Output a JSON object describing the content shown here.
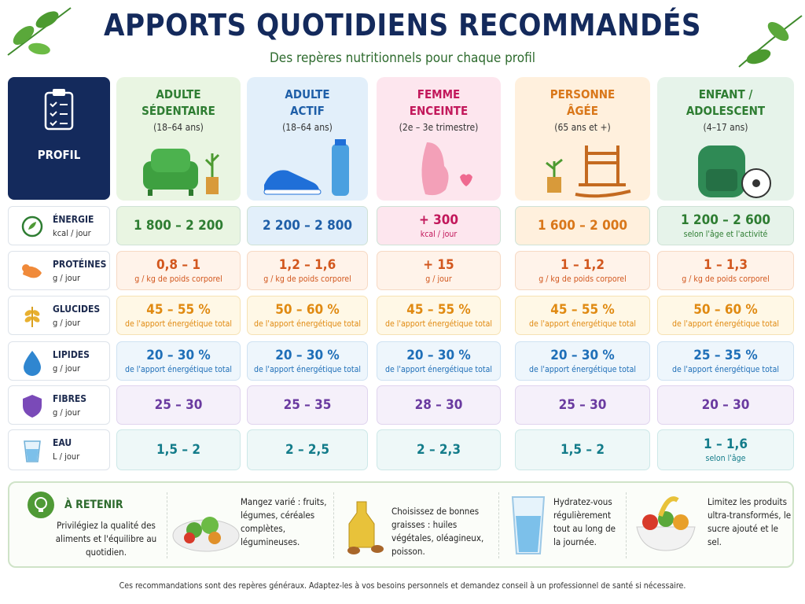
{
  "header": {
    "title": "APPORTS QUOTIDIENS RECOMMANDÉS",
    "subtitle": "Des repères nutritionnels pour chaque profil"
  },
  "table": {
    "corner_label": "PROFIL",
    "profiles": [
      {
        "name": "ADULTE\nSÉDENTAIRE",
        "detail": "(18–64 ans)"
      },
      {
        "name": "ADULTE\nACTIF",
        "detail": "(18–64 ans)"
      },
      {
        "name": "FEMME\nENCEINTE",
        "detail": "(2e – 3e trimestre)"
      },
      {
        "name": "PERSONNE\nÂGÉE",
        "detail": "(65 ans et +)"
      },
      {
        "name": "ENFANT /\nADOLESCENT",
        "detail": "(4–17 ans)"
      }
    ],
    "rows": [
      {
        "name": "ÉNERGIE",
        "unit": "kcal / jour",
        "cells": [
          {
            "value": "1 800 – 2 200"
          },
          {
            "value": "2 200 – 2 800"
          },
          {
            "value": "+ 300",
            "note": "kcal / jour"
          },
          {
            "value": "1 600 – 2 000"
          },
          {
            "value": "1 200 – 2 600",
            "note": "selon l'âge et l'activité"
          }
        ]
      },
      {
        "name": "PROTÉINES",
        "unit": "g / jour",
        "cells": [
          {
            "value": "0,8 – 1",
            "note": "g / kg de poids corporel"
          },
          {
            "value": "1,2 – 1,6",
            "note": "g / kg de poids corporel"
          },
          {
            "value": "+ 15",
            "note": "g / jour"
          },
          {
            "value": "1 – 1,2",
            "note": "g / kg de poids corporel"
          },
          {
            "value": "1 – 1,3",
            "note": "g / kg de poids corporel"
          }
        ]
      },
      {
        "name": "GLUCIDES",
        "unit": "g / jour",
        "cells": [
          {
            "value": "45 – 55 %",
            "note": "de l'apport énergétique total"
          },
          {
            "value": "50 – 60 %",
            "note": "de l'apport énergétique total"
          },
          {
            "value": "45 – 55 %",
            "note": "de l'apport énergétique total"
          },
          {
            "value": "45 – 55 %",
            "note": "de l'apport énergétique total"
          },
          {
            "value": "50 – 60 %",
            "note": "de l'apport énergétique total"
          }
        ]
      },
      {
        "name": "LIPIDES",
        "unit": "g / jour",
        "cells": [
          {
            "value": "20 – 30 %",
            "note": "de l'apport énergétique total"
          },
          {
            "value": "20 – 30 %",
            "note": "de l'apport énergétique total"
          },
          {
            "value": "20 – 30 %",
            "note": "de l'apport énergétique total"
          },
          {
            "value": "20 – 30 %",
            "note": "de l'apport énergétique total"
          },
          {
            "value": "25 – 35 %",
            "note": "de l'apport énergétique total"
          }
        ]
      },
      {
        "name": "FIBRES",
        "unit": "g / jour",
        "cells": [
          {
            "value": "25 – 30"
          },
          {
            "value": "25 – 35"
          },
          {
            "value": "28 – 30"
          },
          {
            "value": "25 – 30"
          },
          {
            "value": "20 – 30"
          }
        ]
      },
      {
        "name": "EAU",
        "unit": "L / jour",
        "cells": [
          {
            "value": "1,5 – 2"
          },
          {
            "value": "2 – 2,5"
          },
          {
            "value": "2 – 2,3"
          },
          {
            "value": "1,5 – 2"
          },
          {
            "value": "1 – 1,6",
            "note": "selon l'âge"
          }
        ]
      }
    ]
  },
  "tips": {
    "title": "À RETENIR",
    "intro": "Privilégiez la qualité des aliments et l'équilibre au quotidien.",
    "items": [
      "Mangez varié : fruits, légumes, céréales complètes, légumineuses.",
      "Choisissez de bonnes graisses : huiles végétales, oléagineux, poisson.",
      "Hydratez-vous régulièrement tout au long de la journée.",
      "Limitez les produits ultra-transformés, le sucre ajouté et le sel."
    ]
  },
  "footer": "Ces recommandations sont des repères généraux. Adaptez-les à vos besoins personnels et demandez conseil à un professionnel de santé si nécessaire."
}
